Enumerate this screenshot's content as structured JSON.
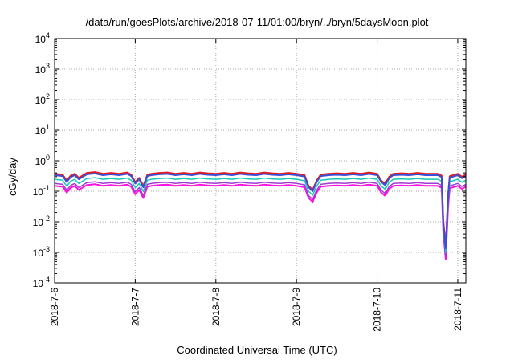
{
  "chart_data": {
    "type": "line",
    "title": "/data/run/goesPlots/archive/2018-07-11/01:00/bryn/../bryn/5daysMoon.plot",
    "xlabel": "Coordinated Universal Time (UTC)",
    "ylabel": "cGy/day",
    "yscale": "log",
    "ylim": [
      0.0001,
      10000
    ],
    "y_ticks": [
      {
        "value": 0.0001,
        "mant": "10",
        "exp": "-4"
      },
      {
        "value": 0.001,
        "mant": "10",
        "exp": "-3"
      },
      {
        "value": 0.01,
        "mant": "10",
        "exp": "-2"
      },
      {
        "value": 0.1,
        "mant": "10",
        "exp": "-1"
      },
      {
        "value": 1,
        "mant": "10",
        "exp": "0"
      },
      {
        "value": 10,
        "mant": "10",
        "exp": "1"
      },
      {
        "value": 100,
        "mant": "10",
        "exp": "2"
      },
      {
        "value": 1000,
        "mant": "10",
        "exp": "3"
      },
      {
        "value": 10000,
        "mant": "10",
        "exp": "4"
      }
    ],
    "xlim": [
      0,
      5.1
    ],
    "x_ticks": [
      {
        "value": 0,
        "label": "2018-7-6"
      },
      {
        "value": 1,
        "label": "2018-7-7"
      },
      {
        "value": 2,
        "label": "2018-7-8"
      },
      {
        "value": 3,
        "label": "2018-7-9"
      },
      {
        "value": 4,
        "label": "2018-7-10"
      },
      {
        "value": 5,
        "label": "2018-7-11"
      }
    ],
    "grid": true,
    "series": [
      {
        "color": "#e41a1c",
        "factor": 1.25,
        "width": 2
      },
      {
        "color": "#3a4fd8",
        "factor": 1.12,
        "width": 2
      },
      {
        "color": "#18c7b8",
        "factor": 0.82,
        "width": 1.5
      },
      {
        "color": "#a03bd6",
        "factor": 0.6,
        "width": 1.5
      },
      {
        "color": "#ff10e0",
        "factor": 0.5,
        "width": 2
      }
    ],
    "x": [
      0,
      0.1,
      0.15,
      0.2,
      0.25,
      0.3,
      0.4,
      0.5,
      0.6,
      0.7,
      0.8,
      0.9,
      0.95,
      1.0,
      1.05,
      1.1,
      1.15,
      1.2,
      1.3,
      1.4,
      1.5,
      1.6,
      1.7,
      1.8,
      1.9,
      2.0,
      2.1,
      2.2,
      2.3,
      2.4,
      2.5,
      2.6,
      2.7,
      2.8,
      2.9,
      3.0,
      3.1,
      3.15,
      3.2,
      3.25,
      3.3,
      3.4,
      3.5,
      3.6,
      3.7,
      3.8,
      3.9,
      4.0,
      4.05,
      4.1,
      4.15,
      4.2,
      4.3,
      4.4,
      4.5,
      4.6,
      4.7,
      4.75,
      4.8,
      4.82,
      4.85,
      4.88,
      4.9,
      5.0,
      5.05,
      5.1
    ],
    "base": [
      0.3,
      0.28,
      0.18,
      0.26,
      0.3,
      0.22,
      0.32,
      0.34,
      0.3,
      0.32,
      0.3,
      0.33,
      0.28,
      0.16,
      0.22,
      0.12,
      0.28,
      0.3,
      0.32,
      0.33,
      0.3,
      0.32,
      0.3,
      0.33,
      0.31,
      0.3,
      0.32,
      0.3,
      0.33,
      0.31,
      0.3,
      0.33,
      0.31,
      0.3,
      0.32,
      0.3,
      0.27,
      0.12,
      0.09,
      0.18,
      0.28,
      0.3,
      0.31,
      0.3,
      0.32,
      0.3,
      0.33,
      0.3,
      0.18,
      0.14,
      0.24,
      0.3,
      0.31,
      0.3,
      0.32,
      0.3,
      0.3,
      0.3,
      0.26,
      0.009,
      0.0012,
      0.06,
      0.25,
      0.3,
      0.24,
      0.28
    ]
  }
}
